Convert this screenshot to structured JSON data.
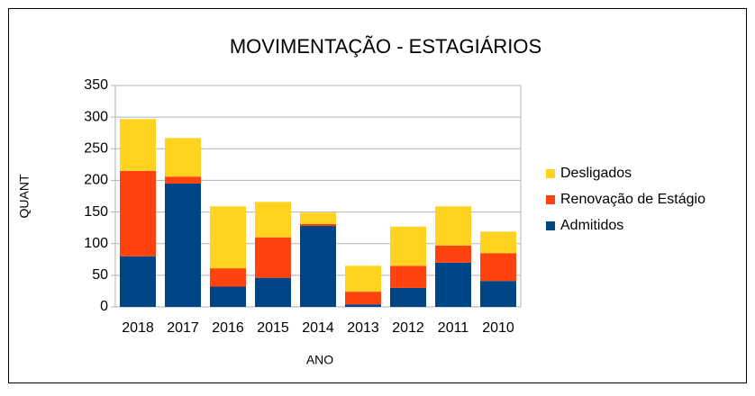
{
  "chart_data": {
    "type": "stacked_bar",
    "title": "MOVIMENTAÇÃO - ESTAGIÁRIOS",
    "x_label": "ANO",
    "y_label": "QUANT",
    "categories": [
      "2018",
      "2017",
      "2016",
      "2015",
      "2014",
      "2013",
      "2012",
      "2011",
      "2010"
    ],
    "series": [
      {
        "name": "Admitidos",
        "color": "#004586",
        "values": [
          80,
          195,
          32,
          46,
          128,
          4,
          30,
          70,
          41
        ]
      },
      {
        "name": "Renovação de Estágio",
        "color": "#ff420e",
        "values": [
          135,
          11,
          29,
          64,
          3,
          20,
          35,
          27,
          44
        ]
      },
      {
        "name": "Desligados",
        "color": "#ffd320",
        "values": [
          82,
          61,
          98,
          56,
          18,
          41,
          62,
          62,
          34
        ]
      }
    ],
    "ylim": [
      0,
      350
    ],
    "yticks": [
      0,
      50,
      100,
      150,
      200,
      250,
      300,
      350
    ],
    "grid": true,
    "legend": "right"
  }
}
